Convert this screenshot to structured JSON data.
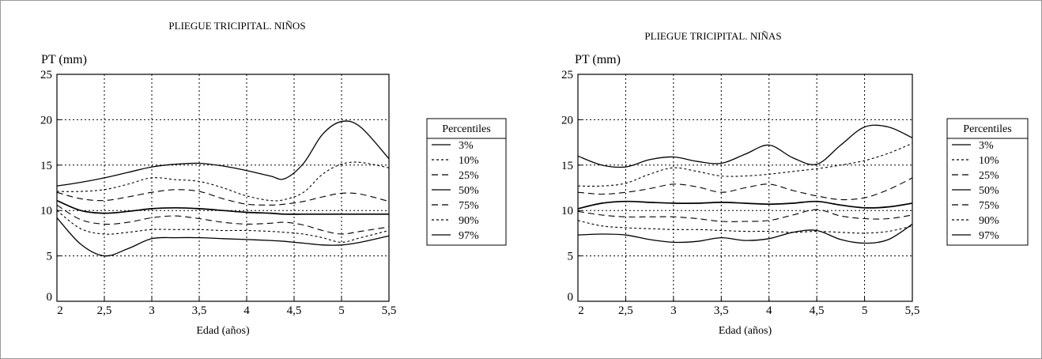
{
  "chart_data": [
    {
      "type": "line",
      "title": "PLIEGUE TRICIPITAL. NIÑOS",
      "ylabel": "PT (mm)",
      "xlabel": "Edad (años)",
      "x_ticks": [
        "2",
        "2,5",
        "3",
        "3,5",
        "4",
        "4,5",
        "5",
        "5,5"
      ],
      "y_ticks": [
        "0",
        "5",
        "10",
        "15",
        "20",
        "25"
      ],
      "xlim": [
        2,
        5.5
      ],
      "ylim": [
        0,
        25
      ],
      "grid": true,
      "legend": {
        "title": "Percentiles",
        "position": "right"
      },
      "x": [
        2,
        2.25,
        2.5,
        2.75,
        3,
        3.25,
        3.5,
        3.75,
        4,
        4.25,
        4.4,
        4.6,
        4.8,
        5,
        5.2,
        5.5
      ],
      "series": [
        {
          "name": "3%",
          "values": [
            9.2,
            6.3,
            5.0,
            5.8,
            6.9,
            7.0,
            7.0,
            6.9,
            6.8,
            6.7,
            6.6,
            6.4,
            6.2,
            6.2,
            6.5,
            7.2
          ]
        },
        {
          "name": "10%",
          "values": [
            10.0,
            8.0,
            7.4,
            7.6,
            7.9,
            7.9,
            7.9,
            7.8,
            7.8,
            7.7,
            7.6,
            7.4,
            7.0,
            6.5,
            7.0,
            7.8
          ]
        },
        {
          "name": "25%",
          "values": [
            10.6,
            9.0,
            8.5,
            8.7,
            9.2,
            9.4,
            9.1,
            8.7,
            8.5,
            8.6,
            8.7,
            8.4,
            7.8,
            7.4,
            7.7,
            8.2
          ]
        },
        {
          "name": "50%",
          "values": [
            11.1,
            10.0,
            9.7,
            9.9,
            10.2,
            10.3,
            10.2,
            10.0,
            9.8,
            9.7,
            9.6,
            9.6,
            9.6,
            9.6,
            9.6,
            9.6
          ]
        },
        {
          "name": "75%",
          "values": [
            12.0,
            11.3,
            11.1,
            11.5,
            12.0,
            12.3,
            12.1,
            11.3,
            10.7,
            10.6,
            10.7,
            11.0,
            11.5,
            11.9,
            11.8,
            11.0
          ]
        },
        {
          "name": "90%",
          "values": [
            12.1,
            12.1,
            12.3,
            12.9,
            13.6,
            13.4,
            13.2,
            12.5,
            11.6,
            11.1,
            11.2,
            12.0,
            14.0,
            15.1,
            15.3,
            14.7
          ]
        },
        {
          "name": "97%",
          "values": [
            12.7,
            13.1,
            13.6,
            14.2,
            14.8,
            15.1,
            15.2,
            14.9,
            14.4,
            13.8,
            13.5,
            15.2,
            18.4,
            19.8,
            19.2,
            15.7
          ]
        }
      ]
    },
    {
      "type": "line",
      "title": "PLIEGUE TRICIPITAL. NIÑAS",
      "ylabel": "PT (mm)",
      "xlabel": "Edad (años)",
      "x_ticks": [
        "2",
        "2,5",
        "3",
        "3,5",
        "4",
        "4,5",
        "5",
        "5,5"
      ],
      "y_ticks": [
        "0",
        "5",
        "10",
        "15",
        "20",
        "25"
      ],
      "xlim": [
        2,
        5.5
      ],
      "ylim": [
        0,
        25
      ],
      "grid": true,
      "legend": {
        "title": "Percentiles",
        "position": "right"
      },
      "x": [
        2,
        2.25,
        2.5,
        2.75,
        3,
        3.25,
        3.5,
        3.75,
        4,
        4.25,
        4.5,
        4.75,
        5,
        5.25,
        5.5
      ],
      "series": [
        {
          "name": "3%",
          "values": [
            7.3,
            7.4,
            7.3,
            6.8,
            6.5,
            6.6,
            7.0,
            6.7,
            6.9,
            7.6,
            7.8,
            6.8,
            6.4,
            6.8,
            8.5
          ]
        },
        {
          "name": "10%",
          "values": [
            8.9,
            8.3,
            8.1,
            8.0,
            7.9,
            7.9,
            7.8,
            7.7,
            7.7,
            7.6,
            7.7,
            7.6,
            7.5,
            7.7,
            8.3
          ]
        },
        {
          "name": "25%",
          "values": [
            9.9,
            9.5,
            9.3,
            9.3,
            9.3,
            9.1,
            8.8,
            8.8,
            8.9,
            9.5,
            10.1,
            9.4,
            9.1,
            9.1,
            9.5
          ]
        },
        {
          "name": "50%",
          "values": [
            10.2,
            10.8,
            11.0,
            10.9,
            10.8,
            10.8,
            10.9,
            10.8,
            10.7,
            10.8,
            11.0,
            10.6,
            10.3,
            10.4,
            10.8
          ]
        },
        {
          "name": "75%",
          "values": [
            12.0,
            11.8,
            12.0,
            12.4,
            12.9,
            12.6,
            12.0,
            12.5,
            12.9,
            12.2,
            11.6,
            11.2,
            11.4,
            12.3,
            13.6
          ]
        },
        {
          "name": "90%",
          "values": [
            12.7,
            12.7,
            13.0,
            14.0,
            14.7,
            14.3,
            13.8,
            13.8,
            14.0,
            14.3,
            14.6,
            15.0,
            15.5,
            16.3,
            17.4
          ]
        },
        {
          "name": "97%",
          "values": [
            16.0,
            15.0,
            14.8,
            15.6,
            15.9,
            15.4,
            15.2,
            16.2,
            17.2,
            15.8,
            15.1,
            17.2,
            19.2,
            19.2,
            18.0
          ]
        }
      ]
    }
  ]
}
